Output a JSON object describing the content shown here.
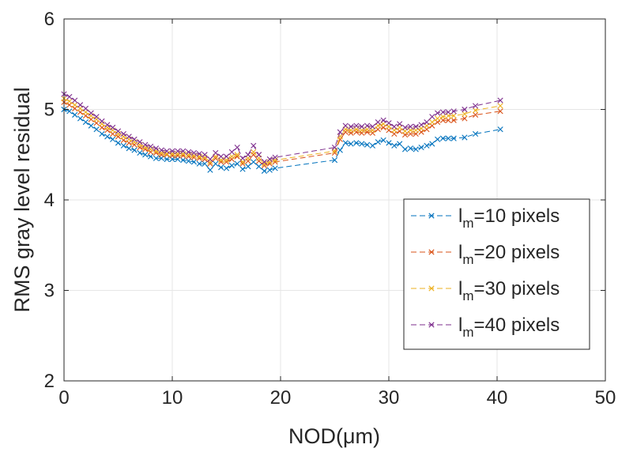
{
  "chart_data": {
    "type": "line",
    "title": "",
    "xlabel": "NOD(μm)",
    "ylabel": "RMS gray level residual",
    "xlim": [
      0,
      50
    ],
    "ylim": [
      2,
      6
    ],
    "xticks": [
      0,
      10,
      20,
      30,
      40,
      50
    ],
    "yticks": [
      2,
      3,
      4,
      5,
      6
    ],
    "xtick_labels": [
      "0",
      "10",
      "20",
      "30",
      "40",
      "50"
    ],
    "ytick_labels": [
      "2",
      "3",
      "4",
      "5",
      "6"
    ],
    "grid": true,
    "line_style": "dashed",
    "marker": "x",
    "legend_position": "bottom-right",
    "series": [
      {
        "name": "l_m=10 pixels",
        "legend_main": "l",
        "legend_sub": "m",
        "legend_rest": "=10 pixels",
        "color": "#0072BD",
        "x": [
          0.0,
          0.5,
          1.0,
          1.5,
          2.0,
          2.5,
          3.0,
          3.5,
          4.0,
          4.5,
          5.0,
          5.5,
          6.0,
          6.5,
          7.0,
          7.5,
          8.0,
          8.5,
          9.0,
          9.5,
          10.0,
          10.5,
          11.0,
          11.5,
          12.0,
          12.5,
          13.0,
          13.5,
          14.0,
          14.5,
          15.0,
          15.5,
          16.0,
          16.5,
          17.0,
          17.5,
          18.0,
          18.5,
          19.0,
          19.5,
          25.0,
          25.5,
          26.0,
          26.5,
          27.0,
          27.5,
          28.0,
          28.5,
          29.0,
          29.5,
          30.0,
          30.5,
          31.0,
          31.5,
          32.0,
          32.5,
          33.0,
          33.5,
          34.0,
          34.5,
          35.0,
          35.5,
          36.0,
          37.0,
          38.0,
          40.3
        ],
        "y": [
          5.0,
          4.98,
          4.94,
          4.9,
          4.86,
          4.82,
          4.78,
          4.73,
          4.7,
          4.67,
          4.63,
          4.6,
          4.57,
          4.55,
          4.52,
          4.5,
          4.48,
          4.46,
          4.46,
          4.45,
          4.45,
          4.45,
          4.44,
          4.43,
          4.42,
          4.4,
          4.4,
          4.33,
          4.4,
          4.36,
          4.35,
          4.38,
          4.4,
          4.34,
          4.37,
          4.42,
          4.37,
          4.32,
          4.33,
          4.35,
          4.44,
          4.55,
          4.63,
          4.62,
          4.63,
          4.62,
          4.61,
          4.6,
          4.64,
          4.66,
          4.63,
          4.6,
          4.62,
          4.56,
          4.57,
          4.56,
          4.58,
          4.6,
          4.62,
          4.67,
          4.68,
          4.68,
          4.68,
          4.69,
          4.73,
          4.78
        ]
      },
      {
        "name": "l_m=20 pixels",
        "legend_main": "l",
        "legend_sub": "m",
        "legend_rest": "=20 pixels",
        "color": "#D95319",
        "x": [
          0.0,
          0.5,
          1.0,
          1.5,
          2.0,
          2.5,
          3.0,
          3.5,
          4.0,
          4.5,
          5.0,
          5.5,
          6.0,
          6.5,
          7.0,
          7.5,
          8.0,
          8.5,
          9.0,
          9.5,
          10.0,
          10.5,
          11.0,
          11.5,
          12.0,
          12.5,
          13.0,
          13.5,
          14.0,
          14.5,
          15.0,
          15.5,
          16.0,
          16.5,
          17.0,
          17.5,
          18.0,
          18.5,
          19.0,
          19.5,
          25.0,
          25.5,
          26.0,
          26.5,
          27.0,
          27.5,
          28.0,
          28.5,
          29.0,
          29.5,
          30.0,
          30.5,
          31.0,
          31.5,
          32.0,
          32.5,
          33.0,
          33.5,
          34.0,
          34.5,
          35.0,
          35.5,
          36.0,
          37.0,
          38.0,
          40.3
        ],
        "y": [
          5.08,
          5.05,
          5.01,
          4.97,
          4.93,
          4.89,
          4.85,
          4.8,
          4.77,
          4.73,
          4.7,
          4.66,
          4.63,
          4.61,
          4.58,
          4.56,
          4.53,
          4.52,
          4.5,
          4.5,
          4.49,
          4.49,
          4.49,
          4.48,
          4.47,
          4.46,
          4.45,
          4.4,
          4.46,
          4.42,
          4.42,
          4.45,
          4.48,
          4.4,
          4.43,
          4.5,
          4.43,
          4.38,
          4.4,
          4.42,
          4.52,
          4.67,
          4.75,
          4.74,
          4.75,
          4.74,
          4.75,
          4.74,
          4.78,
          4.8,
          4.77,
          4.73,
          4.76,
          4.72,
          4.73,
          4.73,
          4.75,
          4.78,
          4.82,
          4.86,
          4.88,
          4.88,
          4.88,
          4.9,
          4.94,
          4.98
        ]
      },
      {
        "name": "l_m=30 pixels",
        "legend_main": "l",
        "legend_sub": "m",
        "legend_rest": "=30 pixels",
        "color": "#EDB120",
        "x": [
          0.0,
          0.5,
          1.0,
          1.5,
          2.0,
          2.5,
          3.0,
          3.5,
          4.0,
          4.5,
          5.0,
          5.5,
          6.0,
          6.5,
          7.0,
          7.5,
          8.0,
          8.5,
          9.0,
          9.5,
          10.0,
          10.5,
          11.0,
          11.5,
          12.0,
          12.5,
          13.0,
          13.5,
          14.0,
          14.5,
          15.0,
          15.5,
          16.0,
          16.5,
          17.0,
          17.5,
          18.0,
          18.5,
          19.0,
          19.5,
          25.0,
          25.5,
          26.0,
          26.5,
          27.0,
          27.5,
          28.0,
          28.5,
          29.0,
          29.5,
          30.0,
          30.5,
          31.0,
          31.5,
          32.0,
          32.5,
          33.0,
          33.5,
          34.0,
          34.5,
          35.0,
          35.5,
          36.0,
          37.0,
          38.0,
          40.3
        ],
        "y": [
          5.12,
          5.09,
          5.05,
          5.01,
          4.97,
          4.93,
          4.89,
          4.84,
          4.8,
          4.77,
          4.73,
          4.7,
          4.67,
          4.64,
          4.61,
          4.58,
          4.56,
          4.54,
          4.52,
          4.51,
          4.51,
          4.51,
          4.51,
          4.5,
          4.49,
          4.48,
          4.47,
          4.42,
          4.48,
          4.44,
          4.44,
          4.48,
          4.5,
          4.42,
          4.46,
          4.53,
          4.46,
          4.4,
          4.42,
          4.44,
          4.54,
          4.7,
          4.78,
          4.77,
          4.78,
          4.77,
          4.78,
          4.77,
          4.82,
          4.84,
          4.81,
          4.77,
          4.8,
          4.76,
          4.77,
          4.77,
          4.79,
          4.82,
          4.86,
          4.9,
          4.92,
          4.93,
          4.93,
          4.95,
          4.99,
          5.04
        ]
      },
      {
        "name": "l_m=40 pixels",
        "legend_main": "l",
        "legend_sub": "m",
        "legend_rest": "=40 pixels",
        "color": "#7E2F8E",
        "x": [
          0.0,
          0.5,
          1.0,
          1.5,
          2.0,
          2.5,
          3.0,
          3.5,
          4.0,
          4.5,
          5.0,
          5.5,
          6.0,
          6.5,
          7.0,
          7.5,
          8.0,
          8.5,
          9.0,
          9.5,
          10.0,
          10.5,
          11.0,
          11.5,
          12.0,
          12.5,
          13.0,
          13.5,
          14.0,
          14.5,
          15.0,
          15.5,
          16.0,
          16.5,
          17.0,
          17.5,
          18.0,
          18.5,
          19.0,
          19.5,
          25.0,
          25.5,
          26.0,
          26.5,
          27.0,
          27.5,
          28.0,
          28.5,
          29.0,
          29.5,
          30.0,
          30.5,
          31.0,
          31.5,
          32.0,
          32.5,
          33.0,
          33.5,
          34.0,
          34.5,
          35.0,
          35.5,
          36.0,
          37.0,
          38.0,
          40.3
        ],
        "y": [
          5.17,
          5.14,
          5.1,
          5.05,
          5.01,
          4.96,
          4.92,
          4.87,
          4.83,
          4.8,
          4.76,
          4.73,
          4.7,
          4.67,
          4.64,
          4.61,
          4.59,
          4.57,
          4.55,
          4.54,
          4.54,
          4.54,
          4.54,
          4.53,
          4.52,
          4.51,
          4.5,
          4.45,
          4.52,
          4.48,
          4.48,
          4.53,
          4.58,
          4.46,
          4.5,
          4.6,
          4.5,
          4.42,
          4.45,
          4.47,
          4.58,
          4.75,
          4.82,
          4.81,
          4.82,
          4.81,
          4.82,
          4.81,
          4.86,
          4.88,
          4.85,
          4.81,
          4.84,
          4.8,
          4.81,
          4.81,
          4.83,
          4.86,
          4.92,
          4.96,
          4.97,
          4.97,
          4.98,
          5.0,
          5.04,
          5.1
        ]
      }
    ]
  }
}
